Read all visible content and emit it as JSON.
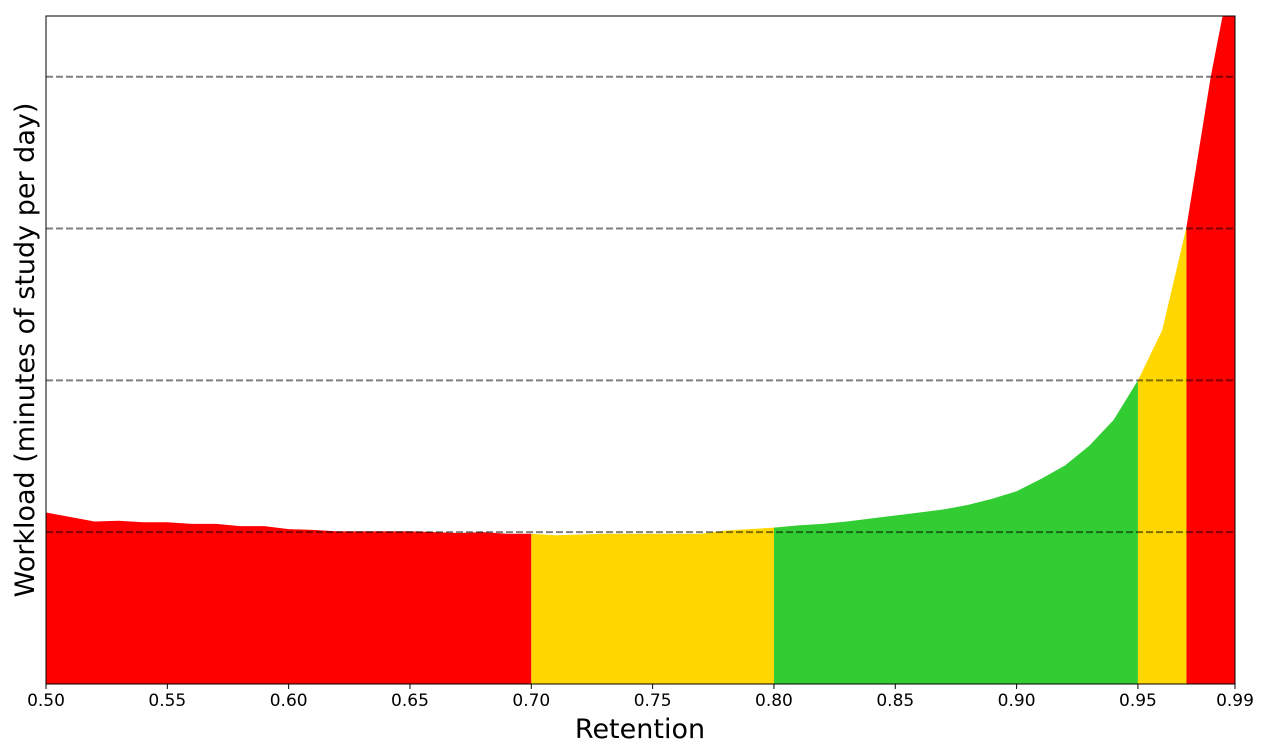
{
  "chart_data": {
    "type": "area",
    "title": "",
    "xlabel": "Retention",
    "ylabel": "Workload (minutes of study per day)",
    "xlim": [
      0.5,
      0.99
    ],
    "ylim": [
      0,
      4.4
    ],
    "x_ticks": [
      "0.50",
      "0.55",
      "0.60",
      "0.65",
      "0.70",
      "0.75",
      "0.80",
      "0.85",
      "0.90",
      "0.95",
      "0.99"
    ],
    "y_ticks_shown": false,
    "reference_lines": [
      1,
      2,
      3,
      4
    ],
    "reference_line_style": "dashed gray",
    "x": [
      0.5,
      0.51,
      0.52,
      0.53,
      0.54,
      0.55,
      0.56,
      0.57,
      0.58,
      0.59,
      0.6,
      0.61,
      0.62,
      0.63,
      0.64,
      0.65,
      0.66,
      0.67,
      0.68,
      0.69,
      0.7,
      0.71,
      0.72,
      0.73,
      0.74,
      0.75,
      0.76,
      0.77,
      0.78,
      0.79,
      0.8,
      0.81,
      0.82,
      0.83,
      0.84,
      0.85,
      0.86,
      0.87,
      0.88,
      0.89,
      0.9,
      0.91,
      0.92,
      0.93,
      0.94,
      0.95,
      0.96,
      0.97,
      0.98,
      0.985,
      0.99
    ],
    "y": [
      1.13,
      1.1,
      1.07,
      1.075,
      1.065,
      1.065,
      1.055,
      1.055,
      1.04,
      1.04,
      1.02,
      1.015,
      1.005,
      1.005,
      1.005,
      1.005,
      1.0,
      0.995,
      1.0,
      0.99,
      0.99,
      0.98,
      0.985,
      0.99,
      0.99,
      0.99,
      0.99,
      0.99,
      1.01,
      1.02,
      1.03,
      1.045,
      1.055,
      1.07,
      1.09,
      1.11,
      1.13,
      1.15,
      1.18,
      1.22,
      1.27,
      1.35,
      1.44,
      1.57,
      1.74,
      2.0,
      2.33,
      3.01,
      4.0,
      4.41,
      4.9
    ],
    "bands": [
      {
        "from": 0.5,
        "to": 0.7,
        "color": "#ff0000"
      },
      {
        "from": 0.7,
        "to": 0.8,
        "color": "#ffd700"
      },
      {
        "from": 0.8,
        "to": 0.95,
        "color": "#32cd32"
      },
      {
        "from": 0.95,
        "to": 0.97,
        "color": "#ffd700"
      },
      {
        "from": 0.97,
        "to": 0.99,
        "color": "#ff0000"
      }
    ],
    "grid": false,
    "legend": "none"
  }
}
